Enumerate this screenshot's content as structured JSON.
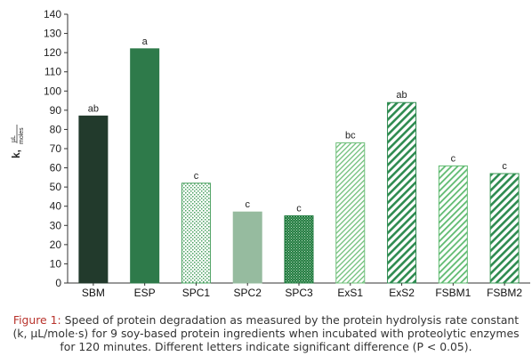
{
  "chart_data": {
    "type": "bar",
    "categories": [
      "SBM",
      "ESP",
      "SPC1",
      "SPC2",
      "SPC3",
      "ExS1",
      "ExS2",
      "FSBM1",
      "FSBM2"
    ],
    "values": [
      87,
      122,
      52,
      37,
      35,
      73,
      94,
      61,
      57
    ],
    "significance_letters": [
      "ab",
      "a",
      "c",
      "c",
      "c",
      "bc",
      "ab",
      "c",
      "c"
    ],
    "ylabel": {
      "main": "k,",
      "frac_num": "µL",
      "frac_den": "moles"
    },
    "ylim": [
      0,
      140
    ],
    "yticks": [
      0,
      10,
      20,
      30,
      40,
      50,
      60,
      70,
      80,
      90,
      100,
      110,
      120,
      130,
      140
    ],
    "grid": false,
    "colors": [
      "#223a2c",
      "#2e7a4a",
      "#4aa060",
      "#96bb9f",
      "#1f7a3e",
      "#6fbf7a",
      "#2e8b50",
      "#5fba70",
      "#3a9a55"
    ],
    "patterns": [
      "solid",
      "solid",
      "dots-sparse",
      "solid",
      "dots-dense",
      "diag-fine",
      "diag-bold",
      "diag-medium",
      "diag-bold"
    ]
  },
  "caption": {
    "label": "Figure 1:",
    "text": " Speed of protein degradation as measured by the protein hydrolysis rate constant (k, µL/mole·s) for 9 soy-based protein ingredients when incubated with proteolytic enzymes for 120 minutes. Different letters indicate significant difference (P < 0.05)."
  }
}
